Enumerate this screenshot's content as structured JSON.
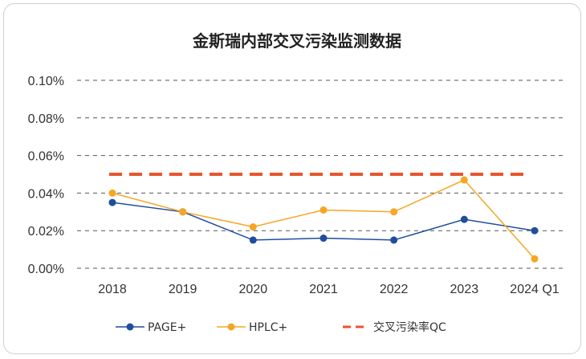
{
  "chart_data": {
    "type": "line",
    "title": "金斯瑞内部交叉污染监测数据",
    "categories": [
      "2018",
      "2019",
      "2020",
      "2021",
      "2022",
      "2023",
      "2024 Q1"
    ],
    "y_ticks": [
      "0.10%",
      "0.08%",
      "0.06%",
      "0.04%",
      "0.02%",
      "0.00%"
    ],
    "ylim": [
      0,
      0.1
    ],
    "y_unit": "%",
    "grid": "horizontal dashed",
    "legend_position": "bottom",
    "series": [
      {
        "name": "PAGE+",
        "color": "#1f4e9c",
        "style": "line-marker",
        "values": [
          0.035,
          0.03,
          0.015,
          0.016,
          0.015,
          0.026,
          0.02
        ]
      },
      {
        "name": "HPLC+",
        "color": "#f5a623",
        "style": "line-marker",
        "values": [
          0.04,
          0.03,
          0.022,
          0.031,
          0.03,
          0.047,
          0.005
        ]
      },
      {
        "name": "交叉污染率QC",
        "color": "#e8552d",
        "style": "dashed",
        "values": [
          0.05,
          0.05,
          0.05,
          0.05,
          0.05,
          0.05,
          0.05
        ]
      }
    ]
  }
}
